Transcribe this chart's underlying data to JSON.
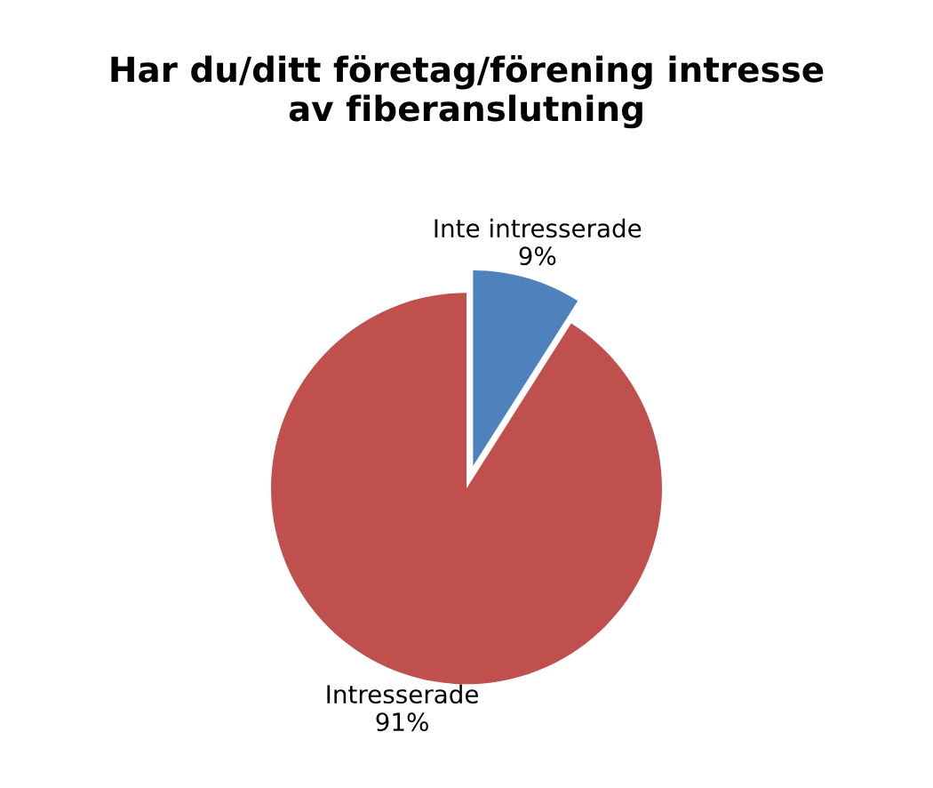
{
  "chart_data": {
    "type": "pie",
    "title": "Har du/ditt företag/förening intresse\nav fiberanslutning",
    "categories": [
      "Inte intresserade",
      "Intresserade"
    ],
    "values": [
      9,
      91
    ],
    "value_labels": [
      "9%",
      "91%"
    ],
    "colors": [
      "#4f81bd",
      "#c0504d"
    ]
  }
}
